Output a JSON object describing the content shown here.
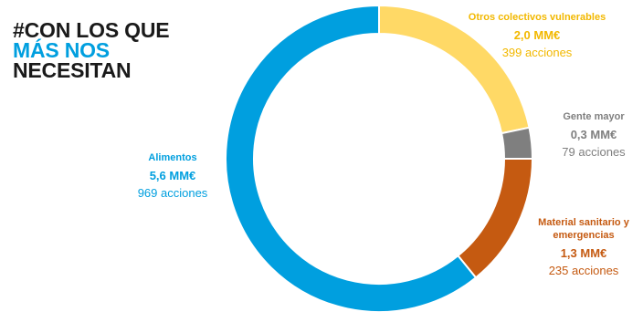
{
  "hashtag": {
    "line1": "#CON LOS QUE",
    "line2": "MÁS NOS",
    "line3": "NECESITAN"
  },
  "colors": {
    "alimentos": "#009fdf",
    "otros": "#ffd966",
    "gente_mayor": "#7f7f7f",
    "material": "#c55a11",
    "hashtag_dark": "#1a1a1a",
    "hashtag_blue": "#009fdf"
  },
  "chart_data": {
    "type": "pie",
    "variant": "donut",
    "title": "",
    "unit": "MM€",
    "slices": [
      {
        "name": "Otros colectivos vulnerables",
        "value": 2.0,
        "amount_label": "2,0 MM€",
        "actions": 399,
        "actions_label": "399 acciones",
        "color": "#ffd966"
      },
      {
        "name": "Gente mayor",
        "value": 0.3,
        "amount_label": "0,3 MM€",
        "actions": 79,
        "actions_label": "79 acciones",
        "color": "#7f7f7f"
      },
      {
        "name": "Material sanitario y emergencias",
        "value": 1.3,
        "amount_label": "1,3 MM€",
        "actions": 235,
        "actions_label": "235 acciones",
        "color": "#c55a11"
      },
      {
        "name": "Alimentos",
        "value": 5.6,
        "amount_label": "5,6 MM€",
        "actions": 969,
        "actions_label": "969 acciones",
        "color": "#009fdf"
      }
    ]
  }
}
